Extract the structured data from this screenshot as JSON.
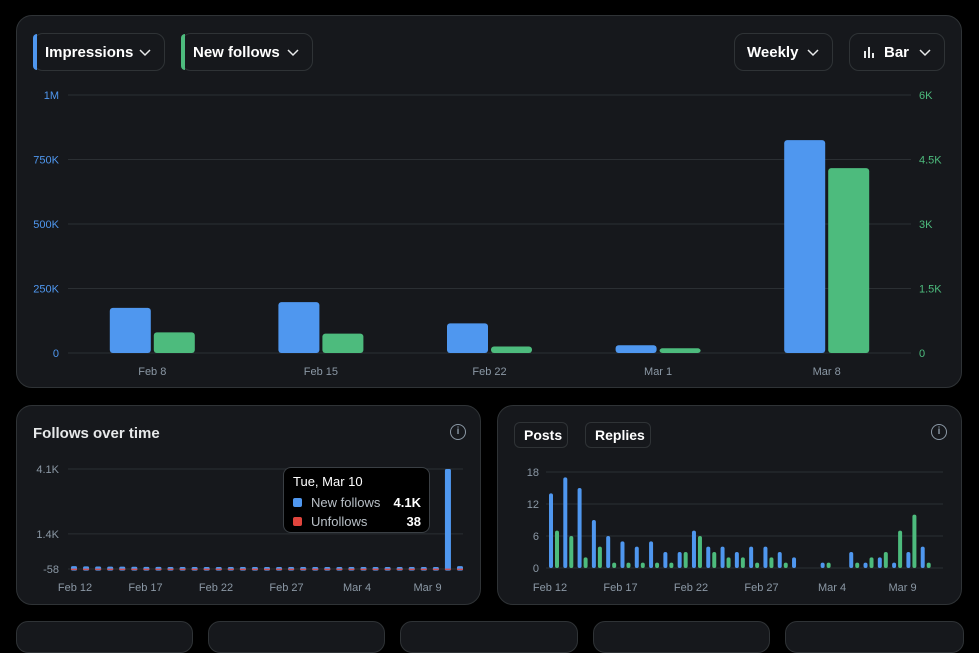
{
  "controls": {
    "metric1": "Impressions",
    "metric2": "New follows",
    "period": "Weekly",
    "chart_type": "Bar"
  },
  "colors": {
    "blue": "#4f97ef",
    "green": "#4dbb7d",
    "red": "#e0453d",
    "grid": "#2b2f33"
  },
  "follows_panel": {
    "title": "Follows over time",
    "tooltip": {
      "date": "Tue, Mar 10",
      "new_follows_label": "New follows",
      "new_follows_value": "4.1K",
      "unfollows_label": "Unfollows",
      "unfollows_value": "38"
    }
  },
  "posts_panel": {
    "legend_posts": "Posts",
    "legend_replies": "Replies"
  },
  "chart_data": [
    {
      "type": "bar",
      "categories": [
        "Feb 8",
        "Feb 15",
        "Feb 22",
        "Mar 1",
        "Mar 8"
      ],
      "series": [
        {
          "name": "Impressions",
          "axis": "left",
          "values": [
            175000,
            197000,
            115000,
            30000,
            825000
          ]
        },
        {
          "name": "New follows",
          "axis": "right",
          "values": [
            480,
            450,
            150,
            110,
            4300
          ]
        }
      ],
      "yticks_left": [
        "0",
        "250K",
        "500K",
        "750K",
        "1M"
      ],
      "yticks_right": [
        "0",
        "1.5K",
        "3K",
        "4.5K",
        "6K"
      ],
      "ylim_left": [
        0,
        1000000
      ],
      "ylim_right": [
        0,
        6000
      ]
    },
    {
      "type": "bar",
      "title": "Follows over time",
      "xticks": [
        "Feb 12",
        "Feb 17",
        "Feb 22",
        "Feb 27",
        "Mar 4",
        "Mar 9"
      ],
      "yticks": [
        "4.1K",
        "1.4K",
        "-58"
      ],
      "ylim": [
        -58,
        4100
      ],
      "series": [
        {
          "name": "New follows",
          "values": [
            60,
            50,
            45,
            40,
            40,
            35,
            30,
            30,
            25,
            25,
            25,
            25,
            25,
            25,
            25,
            25,
            25,
            25,
            25,
            25,
            25,
            25,
            25,
            25,
            25,
            25,
            25,
            25,
            25,
            25,
            25,
            4100,
            60
          ]
        },
        {
          "name": "Unfollows",
          "values": [
            5,
            5,
            5,
            5,
            5,
            5,
            5,
            5,
            5,
            5,
            5,
            5,
            5,
            5,
            5,
            5,
            5,
            5,
            5,
            5,
            5,
            5,
            5,
            5,
            5,
            5,
            5,
            5,
            5,
            5,
            5,
            38,
            5
          ]
        }
      ]
    },
    {
      "type": "bar",
      "xticks": [
        "Feb 12",
        "Feb 17",
        "Feb 22",
        "Feb 27",
        "Mar 4",
        "Mar 9"
      ],
      "yticks": [
        "0",
        "6",
        "12",
        "18"
      ],
      "ylim": [
        0,
        18
      ],
      "series": [
        {
          "name": "Posts",
          "values": [
            14,
            17,
            15,
            9,
            6,
            5,
            4,
            5,
            3,
            3,
            7,
            4,
            4,
            3,
            4,
            4,
            3,
            2,
            0,
            1,
            0,
            3,
            1,
            2,
            1,
            3,
            4,
            0
          ]
        },
        {
          "name": "Replies",
          "values": [
            7,
            6,
            2,
            4,
            1,
            1,
            1,
            1,
            1,
            3,
            6,
            3,
            2,
            2,
            1,
            2,
            1,
            0,
            0,
            1,
            0,
            1,
            2,
            3,
            7,
            10,
            1,
            0
          ]
        }
      ]
    }
  ]
}
